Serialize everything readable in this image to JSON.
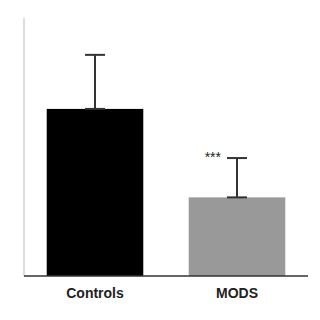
{
  "chart_data": {
    "type": "bar",
    "categories": [
      "Controls",
      "MODS"
    ],
    "values": [
      0.68,
      0.32
    ],
    "errors_up": [
      0.22,
      0.16
    ],
    "errors_down": [
      0.0,
      0.0
    ],
    "colors": [
      "#000000",
      "#999999"
    ],
    "ylim": [
      0,
      1.05
    ],
    "grid": false,
    "tick_labels": "x",
    "annotations": [
      {
        "text": "***",
        "category": "MODS"
      }
    ]
  }
}
